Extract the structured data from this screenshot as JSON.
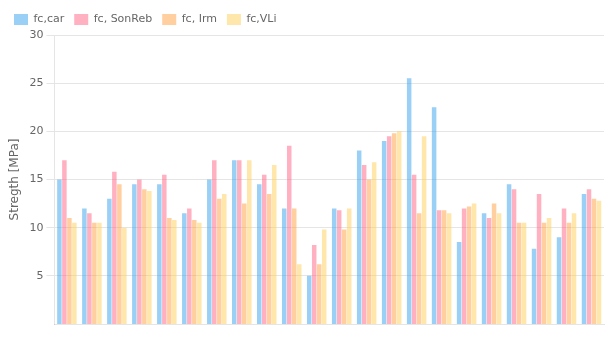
{
  "chart_data": {
    "type": "bar",
    "categories": [
      null,
      null,
      null,
      null,
      null,
      null,
      null,
      null,
      null,
      null,
      null,
      null,
      null,
      null,
      null,
      null,
      null,
      null,
      null,
      null,
      null,
      null
    ],
    "series": [
      {
        "name": "fc,car",
        "values": [
          15.0,
          12.0,
          13.0,
          14.5,
          14.5,
          11.5,
          15.0,
          17.0,
          14.5,
          12.0,
          5.0,
          12.0,
          18.0,
          19.0,
          25.5,
          22.5,
          8.5,
          11.5,
          14.5,
          7.8,
          9.0,
          13.5
        ]
      },
      {
        "name": "fc, SonReb",
        "values": [
          17.0,
          11.5,
          15.8,
          15.0,
          15.5,
          12.0,
          17.0,
          17.0,
          15.5,
          18.5,
          8.2,
          11.8,
          16.5,
          19.5,
          15.5,
          11.8,
          12.0,
          11.0,
          14.0,
          13.5,
          12.0,
          14.0
        ]
      },
      {
        "name": "fc, Irm",
        "values": [
          11.0,
          10.5,
          14.5,
          14.0,
          11.0,
          10.8,
          13.0,
          12.5,
          13.5,
          12.0,
          6.2,
          9.8,
          15.0,
          19.8,
          11.5,
          11.8,
          12.2,
          12.5,
          10.5,
          10.5,
          10.5,
          13.0
        ]
      },
      {
        "name": "fc,VLi",
        "values": [
          10.5,
          10.5,
          10.0,
          13.8,
          10.8,
          10.5,
          13.5,
          17.0,
          16.5,
          6.2,
          9.8,
          12.0,
          16.8,
          20.0,
          19.5,
          11.5,
          12.5,
          11.5,
          10.5,
          11.0,
          11.5,
          12.8
        ]
      }
    ],
    "ylabel": "Stregth [MPa]",
    "ylim": [
      0,
      30
    ],
    "yticks": [
      5,
      10,
      15,
      20,
      25,
      30
    ],
    "grid": true,
    "legend": "upper left",
    "tick_labels": "y"
  }
}
